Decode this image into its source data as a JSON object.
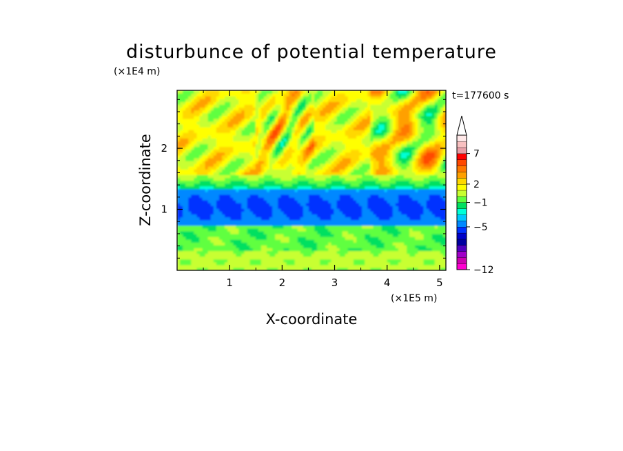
{
  "chart_data": {
    "type": "heatmap",
    "title": "disturbunce of potential temperature",
    "xlabel": "X-coordinate",
    "ylabel": "Z-coordinate",
    "x_unit": "(×1E5 m)",
    "y_unit": "(×1E4 m)",
    "time_label": "t=177600 s",
    "xlim": [
      0,
      5.12
    ],
    "ylim": [
      0,
      2.95
    ],
    "x_ticks": [
      1,
      2,
      3,
      4,
      5
    ],
    "y_ticks": [
      1,
      2
    ],
    "x_tick_labels": [
      "1",
      "2",
      "3",
      "4",
      "5"
    ],
    "y_tick_labels": [
      "1",
      "2"
    ],
    "colorbar": {
      "levels": [
        -12,
        -11,
        -10,
        -9,
        -8,
        -7,
        -6,
        -5,
        -4,
        -3,
        -2,
        -1,
        0,
        1,
        2,
        3,
        4,
        5,
        6,
        7,
        8,
        9,
        10
      ],
      "tick_values": [
        -12,
        -5,
        -1,
        2,
        7
      ],
      "tick_labels": [
        "−12",
        "−5",
        "−1",
        "2",
        "7"
      ],
      "extend": "max",
      "colors": [
        "#ff00d0",
        "#cc00b0",
        "#a000c8",
        "#5000c0",
        "#0000a0",
        "#0000c8",
        "#0030ff",
        "#0088ff",
        "#00c8ff",
        "#00ffd8",
        "#00e060",
        "#60ff40",
        "#c8ff30",
        "#ffff00",
        "#ffd800",
        "#ffa000",
        "#ff7800",
        "#ff4800",
        "#ff0000",
        "#e8a0a8",
        "#f8c0c0",
        "#ffe8e8"
      ]
    }
  }
}
